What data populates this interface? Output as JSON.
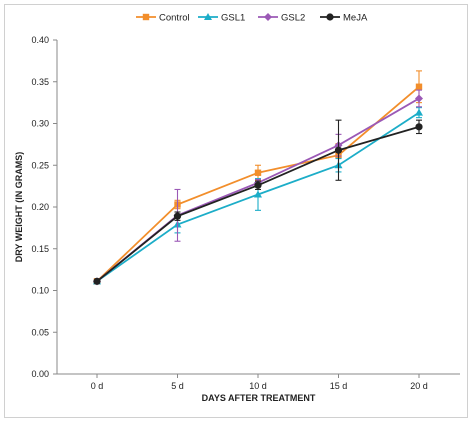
{
  "chart_data": {
    "type": "line",
    "title": "",
    "xlabel": "DAYS AFTER TREATMENT",
    "ylabel": "DRY WEIGHT (IN GRAMS)",
    "categories": [
      "0 d",
      "5 d",
      "10 d",
      "15 d",
      "20 d"
    ],
    "ylim": [
      0,
      0.4
    ],
    "yticks": [
      "0.00",
      "0.05",
      "0.10",
      "0.15",
      "0.20",
      "0.25",
      "0.30",
      "0.35",
      "0.40"
    ],
    "legend_position": "top",
    "grid": false,
    "series": [
      {
        "name": "Control",
        "color": "#F28E2B",
        "marker": "square",
        "values": [
          0.111,
          0.203,
          0.241,
          0.262,
          0.344
        ],
        "errors": [
          0,
          0.005,
          0.009,
          0.014,
          0.019
        ]
      },
      {
        "name": "GSL1",
        "color": "#1CADC8",
        "marker": "triangle",
        "values": [
          0.111,
          0.179,
          0.215,
          0.25,
          0.313
        ],
        "errors": [
          0,
          0.01,
          0.019,
          0.008,
          0.006
        ]
      },
      {
        "name": "GSL2",
        "color": "#9B59B6",
        "marker": "diamond",
        "values": [
          0.111,
          0.19,
          0.229,
          0.274,
          0.33
        ],
        "errors": [
          0,
          0.031,
          0.004,
          0.013,
          0.01
        ]
      },
      {
        "name": "MeJA",
        "color": "#222222",
        "marker": "circle",
        "values": [
          0.111,
          0.189,
          0.226,
          0.268,
          0.296
        ],
        "errors": [
          0,
          0.005,
          0.005,
          0.036,
          0.008
        ]
      }
    ]
  }
}
